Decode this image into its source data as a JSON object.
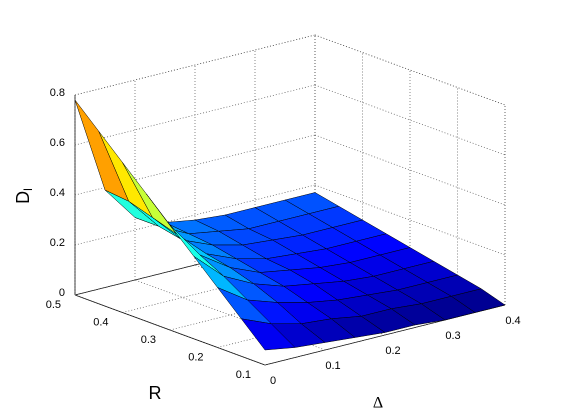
{
  "chart_data": {
    "type": "surface",
    "xlabel": "Δ",
    "ylabel": "R",
    "zlabel": "D",
    "zlabel_subscript": "l",
    "x": [
      0,
      0.05,
      0.1,
      0.15,
      0.2,
      0.25,
      0.3,
      0.35,
      0.4
    ],
    "y": [
      0.1,
      0.15,
      0.2,
      0.25,
      0.3,
      0.35,
      0.4,
      0.45,
      0.5
    ],
    "z": [
      [
        0.06,
        0.04,
        0.03,
        0.02,
        0.01,
        0.01,
        0,
        0,
        0
      ],
      [
        0.15,
        0.1,
        0.07,
        0.06,
        0.04,
        0.04,
        0.03,
        0.03,
        0.03
      ],
      [
        0.24,
        0.16,
        0.12,
        0.09,
        0.07,
        0.06,
        0.05,
        0.05,
        0.05
      ],
      [
        0.33,
        0.22,
        0.16,
        0.12,
        0.1,
        0.08,
        0.07,
        0.07,
        0.07
      ],
      [
        0.42,
        0.27,
        0.19,
        0.14,
        0.12,
        0.1,
        0.09,
        0.09,
        0.09
      ],
      [
        0.51,
        0.32,
        0.21,
        0.16,
        0.13,
        0.12,
        0.11,
        0.11,
        0.11
      ],
      [
        0.6,
        0.35,
        0.23,
        0.18,
        0.15,
        0.14,
        0.13,
        0.13,
        0.13
      ],
      [
        0.69,
        0.38,
        0.25,
        0.19,
        0.17,
        0.15,
        0.15,
        0.15,
        0.15
      ],
      [
        0.78,
        0.39,
        0.25,
        0.2,
        0.18,
        0.17,
        0.17,
        0.17,
        0.17
      ]
    ],
    "xlim": [
      0,
      0.4
    ],
    "ylim": [
      0.1,
      0.5
    ],
    "zlim": [
      0,
      0.8
    ],
    "xticks": [
      0,
      0.1,
      0.2,
      0.3,
      0.4
    ],
    "yticks": [
      0.1,
      0.2,
      0.3,
      0.4,
      0.5
    ],
    "zticks": [
      0,
      0.2,
      0.4,
      0.6,
      0.8
    ],
    "colormap": "jet",
    "grid": true
  }
}
